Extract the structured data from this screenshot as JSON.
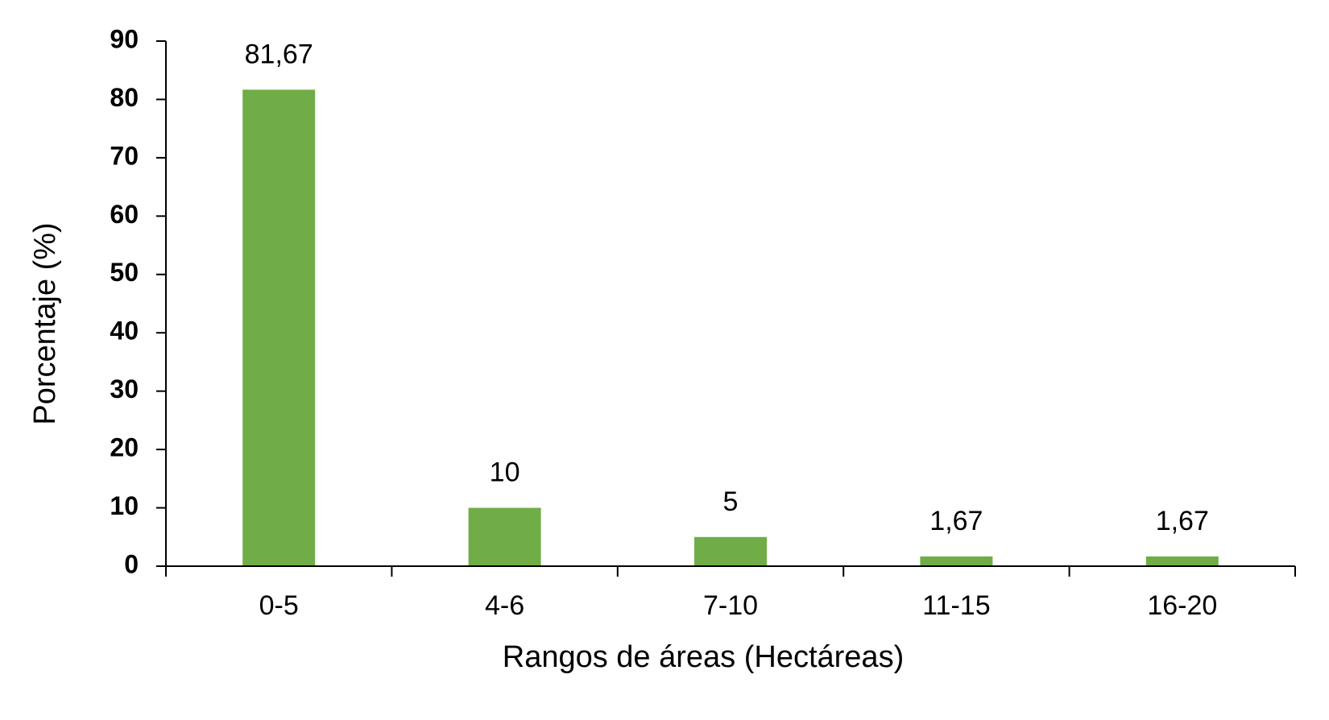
{
  "chart_data": {
    "type": "bar",
    "x_label": "Rangos de áreas (Hectáreas)",
    "y_label": "Porcentaje (%)",
    "categories": [
      "0-5",
      "4-6",
      "7-10",
      "11-15",
      "16-20"
    ],
    "values": [
      81.67,
      10,
      5,
      1.67,
      1.67
    ],
    "value_labels": [
      "81,67",
      "10",
      "5",
      "1,67",
      "1,67"
    ],
    "color": "#70ad47",
    "ylim": [
      0,
      90
    ],
    "yticks": [
      0,
      10,
      20,
      30,
      40,
      50,
      60,
      70,
      80,
      90
    ],
    "grid": false
  }
}
